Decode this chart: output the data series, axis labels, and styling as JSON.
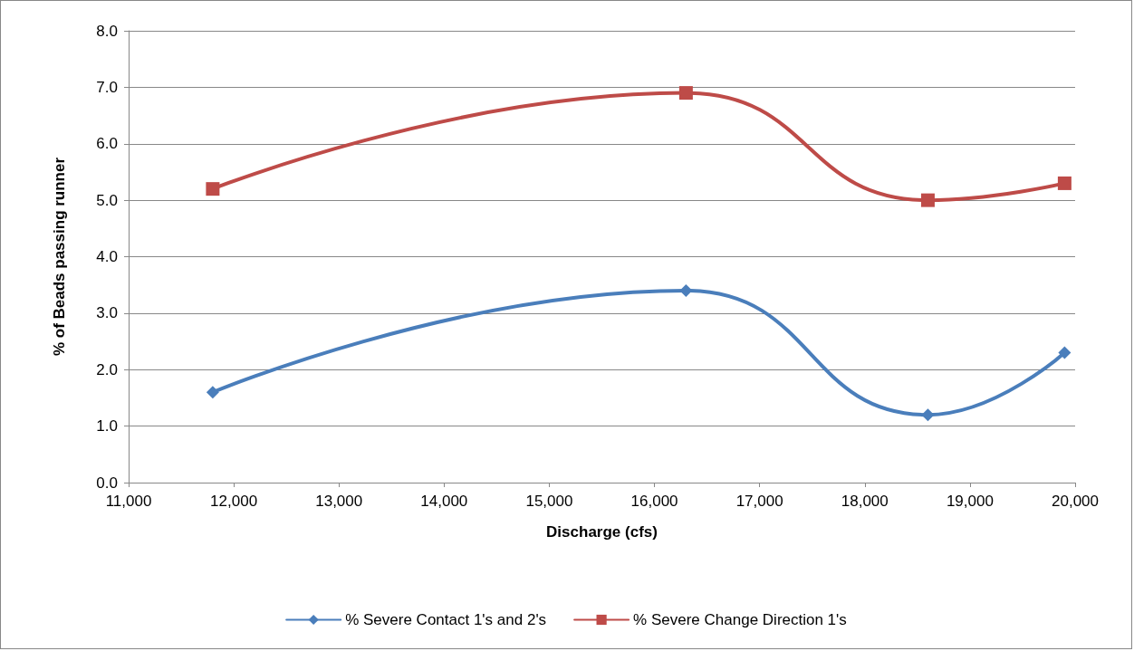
{
  "chart_data": {
    "type": "line",
    "xlabel": "Discharge (cfs)",
    "ylabel": "% of Beads passing runner",
    "x": [
      11800,
      16300,
      18600,
      19900
    ],
    "series": [
      {
        "name": "% Severe Contact 1's and 2's",
        "color": "#4a7ebb",
        "marker": "diamond",
        "values": [
          1.6,
          3.4,
          1.2,
          2.3
        ]
      },
      {
        "name": "% Severe Change Direction 1's",
        "color": "#be4b48",
        "marker": "square",
        "values": [
          5.2,
          6.9,
          5.0,
          5.3
        ]
      }
    ],
    "xlim": [
      11000,
      20000
    ],
    "xticks": [
      {
        "value": 11000,
        "label": "11,000"
      },
      {
        "value": 12000,
        "label": "12,000"
      },
      {
        "value": 13000,
        "label": "13,000"
      },
      {
        "value": 14000,
        "label": "14,000"
      },
      {
        "value": 15000,
        "label": "15,000"
      },
      {
        "value": 16000,
        "label": "16,000"
      },
      {
        "value": 17000,
        "label": "17,000"
      },
      {
        "value": 18000,
        "label": "18,000"
      },
      {
        "value": 19000,
        "label": "19,000"
      },
      {
        "value": 20000,
        "label": "20,000"
      }
    ],
    "ylim": [
      0,
      8
    ],
    "yticks": [
      {
        "value": 0,
        "label": "0.0"
      },
      {
        "value": 1,
        "label": "1.0"
      },
      {
        "value": 2,
        "label": "2.0"
      },
      {
        "value": 3,
        "label": "3.0"
      },
      {
        "value": 4,
        "label": "4.0"
      },
      {
        "value": 5,
        "label": "5.0"
      },
      {
        "value": 6,
        "label": "6.0"
      },
      {
        "value": 7,
        "label": "7.0"
      },
      {
        "value": 8,
        "label": "8.0"
      }
    ],
    "grid": "y",
    "legend": "bottom",
    "line_style": "solid"
  }
}
